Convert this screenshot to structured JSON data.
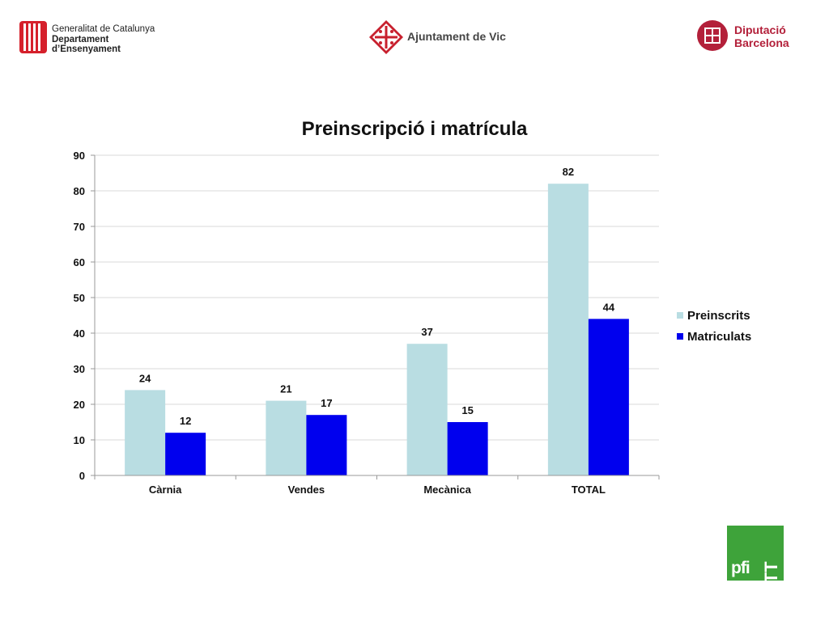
{
  "logos": {
    "generalitat": {
      "line1": "Generalitat de Catalunya",
      "line2": "Departament",
      "line3": "d’Ensenyament"
    },
    "ajuntament": {
      "name": "Ajuntament de Vic"
    },
    "diputacio": {
      "line1": "Diputació",
      "line2": "Barcelona"
    },
    "ptt": {
      "pfi": "pfi",
      "ptt": "PTT"
    }
  },
  "colors": {
    "preinscrits": "#b9dde2",
    "matriculats": "#0000ee",
    "grid": "#d9d9d9",
    "axis": "#999999",
    "generalitat": "#d5202b",
    "vic": "#c8202e",
    "diputacio": "#b3203a",
    "ptt": "#3ea33a"
  },
  "chart_data": {
    "type": "bar",
    "title": "Preinscripció i matrícula",
    "categories": [
      "Càrnia",
      "Vendes",
      "Mecànica",
      "TOTAL"
    ],
    "series": [
      {
        "name": "Preinscrits",
        "values": [
          24,
          21,
          37,
          82
        ]
      },
      {
        "name": "Matriculats",
        "values": [
          12,
          17,
          15,
          44
        ]
      }
    ],
    "ylim": [
      0,
      90
    ],
    "yticks": [
      0,
      10,
      20,
      30,
      40,
      50,
      60,
      70,
      80,
      90
    ],
    "grid": true,
    "legend": "right",
    "data_labels": true
  }
}
